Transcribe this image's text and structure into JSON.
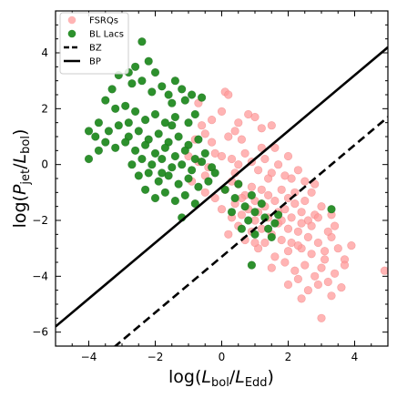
{
  "chart_data": {
    "type": "scatter",
    "xlabel": "log(L_bol/L_Edd)",
    "ylabel": "log(P_jet/L_bol)",
    "xlim": [
      -5.0,
      5.0
    ],
    "ylim": [
      -6.5,
      5.5
    ],
    "x_ticks": [
      -4,
      -2,
      0,
      2,
      4
    ],
    "y_ticks": [
      -6,
      -4,
      -2,
      0,
      2,
      4
    ],
    "x_tick_labels": [
      "−4",
      "−2",
      "0",
      "2",
      "4"
    ],
    "y_tick_labels": [
      "−6",
      "−4",
      "−2",
      "0",
      "2",
      "4"
    ],
    "grid": false,
    "legend_position": "top-left",
    "legend": [
      {
        "label": "FSRQs",
        "kind": "marker",
        "color": "#ff9b9b"
      },
      {
        "label": "BL Lacs",
        "kind": "marker",
        "color": "#228b22"
      },
      {
        "label": "BZ",
        "kind": "dashed-line",
        "color": "#000000"
      },
      {
        "label": "BP",
        "kind": "solid-line",
        "color": "#000000"
      }
    ],
    "lines": [
      {
        "name": "BZ",
        "style": "dashed",
        "slope": 1,
        "intercept": -3.3
      },
      {
        "name": "BP",
        "style": "solid",
        "slope": 1,
        "intercept": -0.8
      }
    ],
    "series": [
      {
        "name": "FSRQs",
        "color": "#ff9b9b",
        "points": [
          [
            -0.7,
            2.2
          ],
          [
            -0.6,
            1.4
          ],
          [
            -0.5,
            1.1
          ],
          [
            -0.8,
            0.9
          ],
          [
            -0.3,
            0.8
          ],
          [
            0.1,
            2.6
          ],
          [
            0.2,
            2.5
          ],
          [
            0.4,
            1.2
          ],
          [
            0.2,
            1.0
          ],
          [
            0.6,
            0.9
          ],
          [
            0.8,
            1.8
          ],
          [
            1.0,
            1.7
          ],
          [
            1.2,
            1.3
          ],
          [
            1.5,
            1.4
          ],
          [
            1.6,
            0.6
          ],
          [
            -1.0,
            0.3
          ],
          [
            -0.7,
            0.1
          ],
          [
            -0.4,
            -0.1
          ],
          [
            -0.2,
            0.4
          ],
          [
            0.0,
            0.3
          ],
          [
            0.3,
            0.2
          ],
          [
            0.5,
            0.0
          ],
          [
            0.7,
            0.4
          ],
          [
            0.9,
            0.1
          ],
          [
            1.1,
            -0.2
          ],
          [
            1.3,
            0.2
          ],
          [
            1.5,
            -0.3
          ],
          [
            1.7,
            0.0
          ],
          [
            1.9,
            -0.4
          ],
          [
            2.1,
            -0.5
          ],
          [
            2.3,
            -0.2
          ],
          [
            2.5,
            -0.6
          ],
          [
            2.8,
            -0.7
          ],
          [
            2.2,
            -1.0
          ],
          [
            0.1,
            -0.9
          ],
          [
            0.3,
            -0.6
          ],
          [
            0.5,
            -0.7
          ],
          [
            0.7,
            -1.1
          ],
          [
            0.9,
            -0.8
          ],
          [
            1.0,
            -1.3
          ],
          [
            1.2,
            -0.9
          ],
          [
            1.3,
            -1.5
          ],
          [
            1.4,
            -1.1
          ],
          [
            1.6,
            -1.3
          ],
          [
            1.8,
            -0.9
          ],
          [
            1.9,
            -1.6
          ],
          [
            2.0,
            -1.2
          ],
          [
            2.1,
            -1.9
          ],
          [
            2.2,
            -1.4
          ],
          [
            2.4,
            -1.7
          ],
          [
            2.5,
            -1.3
          ],
          [
            2.6,
            -2.0
          ],
          [
            2.8,
            -1.8
          ],
          [
            3.0,
            -1.5
          ],
          [
            0.4,
            -1.4
          ],
          [
            0.6,
            -1.8
          ],
          [
            0.8,
            -1.6
          ],
          [
            1.0,
            -2.0
          ],
          [
            1.1,
            -1.7
          ],
          [
            1.2,
            -2.3
          ],
          [
            1.4,
            -1.9
          ],
          [
            1.5,
            -2.5
          ],
          [
            1.7,
            -2.1
          ],
          [
            1.8,
            -2.7
          ],
          [
            2.0,
            -2.3
          ],
          [
            2.1,
            -2.8
          ],
          [
            2.3,
            -2.4
          ],
          [
            2.4,
            -3.0
          ],
          [
            2.6,
            -2.6
          ],
          [
            2.7,
            -3.2
          ],
          [
            2.9,
            -2.8
          ],
          [
            3.1,
            -3.1
          ],
          [
            3.3,
            -2.6
          ],
          [
            3.5,
            -3.0
          ],
          [
            3.7,
            -3.4
          ],
          [
            3.9,
            -2.9
          ],
          [
            0.2,
            -2.5
          ],
          [
            0.5,
            -2.2
          ],
          [
            0.7,
            -2.7
          ],
          [
            0.9,
            -2.4
          ],
          [
            1.1,
            -3.0
          ],
          [
            1.3,
            -2.8
          ],
          [
            1.6,
            -3.3
          ],
          [
            1.9,
            -3.5
          ],
          [
            2.2,
            -3.8
          ],
          [
            2.5,
            -3.6
          ],
          [
            2.8,
            -4.0
          ],
          [
            3.0,
            -3.7
          ],
          [
            3.2,
            -4.2
          ],
          [
            3.4,
            -3.9
          ],
          [
            3.6,
            -4.4
          ],
          [
            2.6,
            -4.5
          ],
          [
            2.9,
            -4.3
          ],
          [
            3.3,
            -4.7
          ],
          [
            2.3,
            -4.1
          ],
          [
            3.0,
            -5.5
          ],
          [
            4.9,
            -3.8
          ],
          [
            -0.3,
            1.6
          ],
          [
            0.0,
            1.9
          ],
          [
            0.5,
            1.5
          ],
          [
            -0.9,
            -0.6
          ],
          [
            -0.5,
            -0.4
          ],
          [
            0.4,
            -0.3
          ],
          [
            1.2,
            0.6
          ],
          [
            2.0,
            0.3
          ],
          [
            1.4,
            -0.5
          ],
          [
            0.6,
            -1.2
          ],
          [
            1.8,
            -2.0
          ],
          [
            2.4,
            -2.1
          ],
          [
            2.7,
            -2.2
          ],
          [
            3.2,
            -2.4
          ],
          [
            3.4,
            -2.2
          ],
          [
            1.5,
            -3.7
          ],
          [
            2.0,
            -4.3
          ],
          [
            2.4,
            -4.8
          ],
          [
            3.7,
            -3.6
          ],
          [
            3.1,
            -3.4
          ],
          [
            2.0,
            -3.1
          ],
          [
            1.0,
            -2.8
          ],
          [
            0.3,
            -1.9
          ],
          [
            -0.2,
            -1.2
          ],
          [
            -0.5,
            -1.0
          ],
          [
            0.0,
            -1.6
          ],
          [
            2.7,
            -1.0
          ],
          [
            2.9,
            -1.9
          ],
          [
            3.3,
            -1.8
          ],
          [
            1.7,
            -1.7
          ],
          [
            2.3,
            -2.9
          ]
        ]
      },
      {
        "name": "BL Lacs",
        "color": "#228b22",
        "points": [
          [
            -2.4,
            4.4
          ],
          [
            -2.6,
            3.5
          ],
          [
            -2.2,
            3.7
          ],
          [
            -2.0,
            3.3
          ],
          [
            -2.8,
            3.3
          ],
          [
            -3.1,
            3.2
          ],
          [
            -3.3,
            2.7
          ],
          [
            -2.7,
            2.9
          ],
          [
            -2.4,
            3.0
          ],
          [
            -2.1,
            2.6
          ],
          [
            -1.8,
            2.8
          ],
          [
            -1.4,
            3.0
          ],
          [
            -1.6,
            2.5
          ],
          [
            -1.2,
            2.7
          ],
          [
            -0.9,
            2.5
          ],
          [
            -1.1,
            2.3
          ],
          [
            -3.5,
            2.3
          ],
          [
            -3.2,
            2.0
          ],
          [
            -2.9,
            2.1
          ],
          [
            -2.6,
            1.9
          ],
          [
            -2.3,
            1.6
          ],
          [
            -2.0,
            1.8
          ],
          [
            -1.7,
            1.5
          ],
          [
            -1.4,
            1.7
          ],
          [
            -1.0,
            1.5
          ],
          [
            -0.8,
            1.8
          ],
          [
            -3.7,
            1.5
          ],
          [
            -3.4,
            1.2
          ],
          [
            -3.1,
            1.4
          ],
          [
            -2.8,
            1.0
          ],
          [
            -2.5,
            1.2
          ],
          [
            -2.2,
            0.9
          ],
          [
            -1.9,
            1.1
          ],
          [
            -1.6,
            0.8
          ],
          [
            -1.3,
            1.0
          ],
          [
            -1.0,
            0.7
          ],
          [
            -0.7,
            0.9
          ],
          [
            -4.0,
            1.2
          ],
          [
            -3.8,
            1.0
          ],
          [
            -3.5,
            0.8
          ],
          [
            -3.2,
            0.6
          ],
          [
            -2.9,
            0.8
          ],
          [
            -2.6,
            0.5
          ],
          [
            -2.3,
            0.7
          ],
          [
            -2.0,
            0.4
          ],
          [
            -1.7,
            0.6
          ],
          [
            -1.4,
            0.3
          ],
          [
            -1.1,
            0.5
          ],
          [
            -0.8,
            0.2
          ],
          [
            -0.5,
            0.4
          ],
          [
            -4.0,
            0.2
          ],
          [
            -3.7,
            0.5
          ],
          [
            -2.4,
            0.2
          ],
          [
            -2.1,
            0.0
          ],
          [
            -1.8,
            0.2
          ],
          [
            -1.5,
            -0.1
          ],
          [
            -1.2,
            0.0
          ],
          [
            -0.9,
            -0.2
          ],
          [
            -0.6,
            0.1
          ],
          [
            -0.3,
            -0.1
          ],
          [
            -2.5,
            -0.4
          ],
          [
            -2.2,
            -0.3
          ],
          [
            -1.9,
            -0.6
          ],
          [
            -1.6,
            -0.4
          ],
          [
            -1.3,
            -0.7
          ],
          [
            -1.0,
            -0.5
          ],
          [
            -0.7,
            -0.8
          ],
          [
            -0.4,
            -0.6
          ],
          [
            -2.3,
            -0.9
          ],
          [
            -2.0,
            -1.2
          ],
          [
            -1.7,
            -1.0
          ],
          [
            -1.4,
            -1.3
          ],
          [
            -1.1,
            -1.1
          ],
          [
            -0.8,
            -1.4
          ],
          [
            -1.2,
            -1.9
          ],
          [
            0.1,
            -0.9
          ],
          [
            0.4,
            -1.2
          ],
          [
            0.7,
            -1.5
          ],
          [
            1.0,
            -1.7
          ],
          [
            1.3,
            -1.9
          ],
          [
            1.6,
            -2.1
          ],
          [
            0.8,
            -2.0
          ],
          [
            0.6,
            -2.3
          ],
          [
            1.0,
            -2.5
          ],
          [
            1.4,
            -2.3
          ],
          [
            1.7,
            -1.8
          ],
          [
            0.3,
            -1.7
          ],
          [
            0.9,
            -1.1
          ],
          [
            3.3,
            -1.6
          ],
          [
            0.9,
            -3.6
          ],
          [
            -0.2,
            -0.3
          ],
          [
            -1.5,
            2.2
          ],
          [
            -2.8,
            1.5
          ],
          [
            -1.5,
            1.4
          ],
          [
            -0.6,
            2.4
          ],
          [
            -1.8,
            -0.3
          ],
          [
            -2.7,
            0.0
          ],
          [
            1.2,
            -1.4
          ],
          [
            0.5,
            -0.7
          ],
          [
            1.5,
            -2.6
          ]
        ]
      }
    ]
  }
}
